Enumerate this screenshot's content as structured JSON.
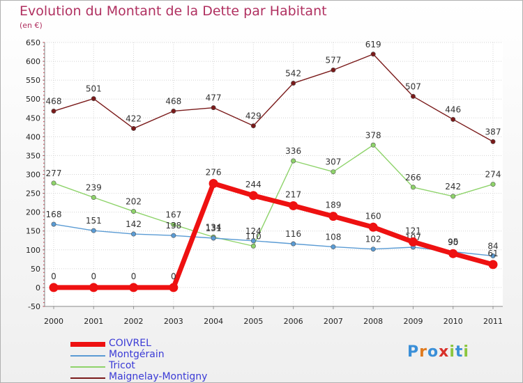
{
  "title": "Evolution du Montant de la Dette par Habitant",
  "subtitle": "(en €)",
  "logo": "Proxiti",
  "chart_data": {
    "type": "line",
    "title": "Evolution du Montant de la Dette par Habitant",
    "ylabel": "(en €)",
    "x": [
      "2000",
      "2001",
      "2002",
      "2003",
      "2004",
      "2005",
      "2006",
      "2007",
      "2008",
      "2009",
      "2010",
      "2011"
    ],
    "ylim": [
      -50,
      650
    ],
    "yticks": [
      -50,
      0,
      50,
      100,
      150,
      200,
      250,
      300,
      350,
      400,
      450,
      500,
      550,
      600,
      650
    ],
    "grid": true,
    "legend_position": "bottom",
    "series": [
      {
        "name": "Maignelay-Montigny",
        "color": "#7a1a1a",
        "values": [
          468,
          501,
          422,
          468,
          477,
          429,
          542,
          577,
          619,
          507,
          446,
          387
        ]
      },
      {
        "name": "Tricot",
        "color": "#8ed36a",
        "values": [
          277,
          239,
          202,
          167,
          134,
          110,
          336,
          307,
          378,
          266,
          242,
          274
        ]
      },
      {
        "name": "Montgérain",
        "color": "#5a9bd4",
        "values": [
          168,
          151,
          142,
          138,
          131,
          124,
          116,
          108,
          102,
          107,
          95,
          84
        ]
      },
      {
        "name": "COIVREL",
        "color": "#ee1111",
        "values": [
          0,
          0,
          0,
          0,
          276,
          244,
          217,
          189,
          160,
          121,
          90,
          61
        ]
      }
    ]
  }
}
